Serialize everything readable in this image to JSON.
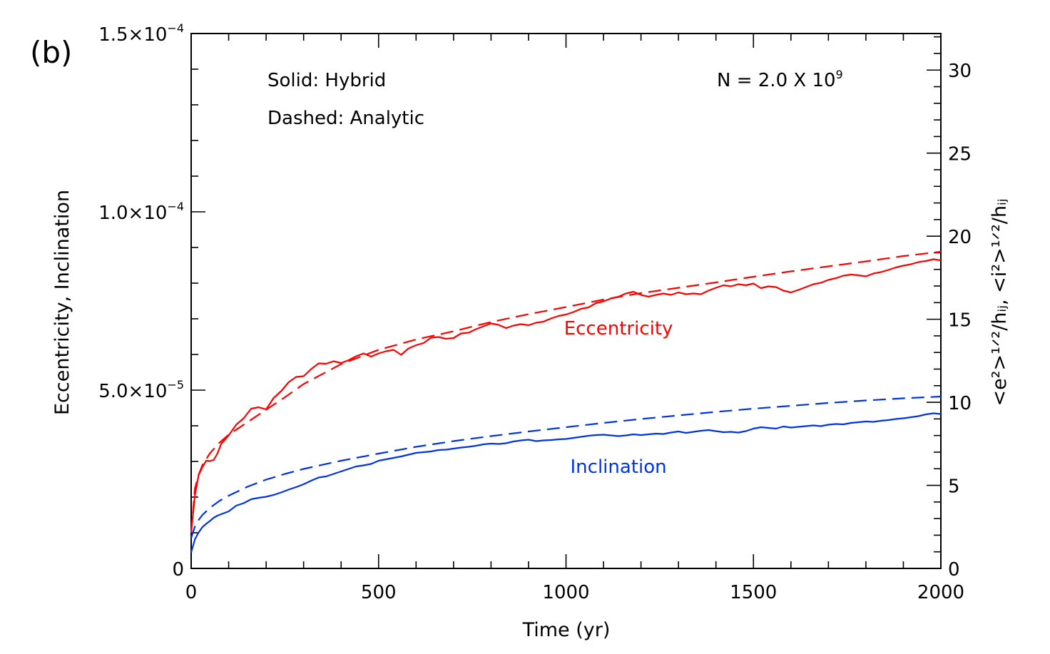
{
  "chart_data": {
    "type": "line",
    "panel_label": "(b)",
    "xlabel": "Time (yr)",
    "ylabel": "Eccentricity, Inclination",
    "ylabel_right": "<e²>¹ᐟ²/hᵢⱼ, <i²>¹ᐟ²/hᵢⱼ",
    "xlim": [
      0,
      2000
    ],
    "ylim": [
      0,
      0.00015
    ],
    "ylim_right": [
      0,
      32.2
    ],
    "grid": false,
    "x_ticks": [
      {
        "value": 0,
        "label": "0"
      },
      {
        "value": 500,
        "label": "500"
      },
      {
        "value": 1000,
        "label": "1000"
      },
      {
        "value": 1500,
        "label": "1500"
      },
      {
        "value": 2000,
        "label": "2000"
      }
    ],
    "y_ticks": [
      {
        "value": 0,
        "label": "0",
        "exp": ""
      },
      {
        "value": 5e-05,
        "label": "5.0×10",
        "exp": "−5"
      },
      {
        "value": 0.0001,
        "label": "1.0×10",
        "exp": "−4"
      },
      {
        "value": 0.00015,
        "label": "1.5×10",
        "exp": "−4"
      }
    ],
    "y_right_ticks": [
      {
        "value": 0,
        "label": "0"
      },
      {
        "value": 5,
        "label": "5"
      },
      {
        "value": 10,
        "label": "10"
      },
      {
        "value": 15,
        "label": "15"
      },
      {
        "value": 20,
        "label": "20"
      },
      {
        "value": 25,
        "label": "25"
      },
      {
        "value": 30,
        "label": "30"
      }
    ],
    "annotations": {
      "solid": "Solid: Hybrid",
      "dashed": "Dashed: Analytic",
      "n_text": "N  =  2.0  X  10",
      "n_exp": "9"
    },
    "colors": {
      "eccentricity": "#ff0000",
      "inclination": "#0033e6",
      "axis": "#000000"
    },
    "series": [
      {
        "name": "Eccentricity",
        "style": "solid",
        "color": "#ff0000",
        "x": [
          0,
          10,
          20,
          30,
          40,
          50,
          60,
          70,
          80,
          100,
          120,
          140,
          160,
          180,
          200,
          220,
          240,
          260,
          280,
          300,
          320,
          340,
          360,
          380,
          400,
          420,
          440,
          460,
          480,
          500,
          520,
          540,
          560,
          580,
          600,
          620,
          640,
          660,
          680,
          700,
          720,
          740,
          760,
          780,
          800,
          820,
          840,
          860,
          880,
          900,
          920,
          940,
          960,
          980,
          1000,
          1020,
          1040,
          1060,
          1080,
          1100,
          1120,
          1140,
          1160,
          1180,
          1200,
          1220,
          1240,
          1260,
          1280,
          1300,
          1320,
          1340,
          1360,
          1380,
          1400,
          1420,
          1440,
          1460,
          1480,
          1500,
          1520,
          1540,
          1560,
          1580,
          1600,
          1620,
          1640,
          1660,
          1680,
          1700,
          1720,
          1740,
          1760,
          1780,
          1800,
          1820,
          1840,
          1860,
          1880,
          1900,
          1920,
          1940,
          1960,
          1980,
          2000
        ],
        "y": [
          1.02e-05,
          2.05e-05,
          2.62e-05,
          2.84e-05,
          3.02e-05,
          3.01e-05,
          3.04e-05,
          3.22e-05,
          3.49e-05,
          3.73e-05,
          4.03e-05,
          4.21e-05,
          4.48e-05,
          4.52e-05,
          4.46e-05,
          4.78e-05,
          4.97e-05,
          5.22e-05,
          5.37e-05,
          5.39e-05,
          5.59e-05,
          5.75e-05,
          5.74e-05,
          5.81e-05,
          5.76e-05,
          5.84e-05,
          5.95e-05,
          6.03e-05,
          5.94e-05,
          6.03e-05,
          6.09e-05,
          6.13e-05,
          5.99e-05,
          6.17e-05,
          6.26e-05,
          6.32e-05,
          6.47e-05,
          6.49e-05,
          6.44e-05,
          6.46e-05,
          6.59e-05,
          6.61e-05,
          6.71e-05,
          6.79e-05,
          6.87e-05,
          6.83e-05,
          6.74e-05,
          6.81e-05,
          6.85e-05,
          6.82e-05,
          6.89e-05,
          6.92e-05,
          7.01e-05,
          7.08e-05,
          7.12e-05,
          7.19e-05,
          7.28e-05,
          7.32e-05,
          7.44e-05,
          7.49e-05,
          7.57e-05,
          7.62e-05,
          7.71e-05,
          7.76e-05,
          7.67e-05,
          7.62e-05,
          7.67e-05,
          7.71e-05,
          7.67e-05,
          7.74e-05,
          7.69e-05,
          7.71e-05,
          7.69e-05,
          7.79e-05,
          7.87e-05,
          7.94e-05,
          7.91e-05,
          7.97e-05,
          7.94e-05,
          7.99e-05,
          7.86e-05,
          7.91e-05,
          7.89e-05,
          7.79e-05,
          7.74e-05,
          7.81e-05,
          7.89e-05,
          7.97e-05,
          8.01e-05,
          8.09e-05,
          8.14e-05,
          8.21e-05,
          8.24e-05,
          8.22e-05,
          8.19e-05,
          8.27e-05,
          8.31e-05,
          8.37e-05,
          8.44e-05,
          8.49e-05,
          8.53e-05,
          8.59e-05,
          8.62e-05,
          8.67e-05,
          8.64e-05
        ]
      },
      {
        "name": "Eccentricity",
        "style": "dashed",
        "color": "#ff0000",
        "x": [
          0,
          10,
          20,
          30,
          50,
          75,
          100,
          150,
          200,
          250,
          300,
          400,
          500,
          600,
          700,
          800,
          900,
          1000,
          1100,
          1200,
          1300,
          1400,
          1500,
          1600,
          1700,
          1800,
          1900,
          2000
        ],
        "y": [
          1e-05,
          2.25e-05,
          2.63e-05,
          2.9e-05,
          3.23e-05,
          3.52e-05,
          3.75e-05,
          4.1e-05,
          4.45e-05,
          4.8e-05,
          5.17e-05,
          5.73e-05,
          6.13e-05,
          6.42e-05,
          6.65e-05,
          6.91e-05,
          7.13e-05,
          7.33e-05,
          7.54e-05,
          7.72e-05,
          7.87e-05,
          8.02e-05,
          8.18e-05,
          8.33e-05,
          8.47e-05,
          8.61e-05,
          8.76e-05,
          8.88e-05
        ]
      },
      {
        "name": "Inclination",
        "style": "solid",
        "color": "#0033e6",
        "x": [
          0,
          10,
          20,
          30,
          40,
          50,
          60,
          70,
          80,
          100,
          120,
          140,
          160,
          180,
          200,
          220,
          240,
          260,
          280,
          300,
          320,
          340,
          360,
          380,
          400,
          420,
          440,
          460,
          480,
          500,
          520,
          540,
          560,
          580,
          600,
          620,
          640,
          660,
          680,
          700,
          720,
          740,
          760,
          780,
          800,
          820,
          840,
          860,
          880,
          900,
          920,
          940,
          960,
          980,
          1000,
          1020,
          1040,
          1060,
          1080,
          1100,
          1120,
          1140,
          1160,
          1180,
          1200,
          1220,
          1240,
          1260,
          1280,
          1300,
          1320,
          1340,
          1360,
          1380,
          1400,
          1420,
          1440,
          1460,
          1480,
          1500,
          1520,
          1540,
          1560,
          1580,
          1600,
          1620,
          1640,
          1660,
          1680,
          1700,
          1720,
          1740,
          1760,
          1780,
          1800,
          1820,
          1840,
          1860,
          1880,
          1900,
          1920,
          1940,
          1960,
          1980,
          2000
        ],
        "y": [
          4.5e-06,
          8.2e-06,
          1.01e-05,
          1.16e-05,
          1.25e-05,
          1.33e-05,
          1.42e-05,
          1.48e-05,
          1.52e-05,
          1.6e-05,
          1.76e-05,
          1.83e-05,
          1.94e-05,
          1.98e-05,
          2.01e-05,
          2.06e-05,
          2.13e-05,
          2.21e-05,
          2.28e-05,
          2.36e-05,
          2.46e-05,
          2.55e-05,
          2.58e-05,
          2.65e-05,
          2.72e-05,
          2.79e-05,
          2.86e-05,
          2.89e-05,
          2.93e-05,
          3.02e-05,
          3.06e-05,
          3.1e-05,
          3.14e-05,
          3.19e-05,
          3.24e-05,
          3.26e-05,
          3.28e-05,
          3.32e-05,
          3.33e-05,
          3.36e-05,
          3.39e-05,
          3.41e-05,
          3.44e-05,
          3.48e-05,
          3.5e-05,
          3.49e-05,
          3.51e-05,
          3.56e-05,
          3.59e-05,
          3.61e-05,
          3.57e-05,
          3.59e-05,
          3.6e-05,
          3.62e-05,
          3.63e-05,
          3.66e-05,
          3.69e-05,
          3.72e-05,
          3.74e-05,
          3.75e-05,
          3.73e-05,
          3.71e-05,
          3.73e-05,
          3.76e-05,
          3.74e-05,
          3.76e-05,
          3.78e-05,
          3.77e-05,
          3.81e-05,
          3.84e-05,
          3.8e-05,
          3.83e-05,
          3.86e-05,
          3.88e-05,
          3.85e-05,
          3.82e-05,
          3.83e-05,
          3.81e-05,
          3.85e-05,
          3.92e-05,
          3.96e-05,
          3.94e-05,
          3.92e-05,
          3.98e-05,
          3.95e-05,
          3.97e-05,
          3.99e-05,
          4.01e-05,
          3.99e-05,
          4.03e-05,
          4.05e-05,
          4.04e-05,
          4.08e-05,
          4.1e-05,
          4.12e-05,
          4.11e-05,
          4.14e-05,
          4.16e-05,
          4.19e-05,
          4.21e-05,
          4.24e-05,
          4.27e-05,
          4.32e-05,
          4.35e-05,
          4.33e-05
        ]
      },
      {
        "name": "Inclination",
        "style": "dashed",
        "color": "#0033e6",
        "x": [
          0,
          10,
          20,
          30,
          50,
          75,
          100,
          150,
          200,
          250,
          300,
          400,
          500,
          600,
          700,
          800,
          900,
          1000,
          1100,
          1200,
          1300,
          1400,
          1500,
          1600,
          1700,
          1800,
          1900,
          2000
        ],
        "y": [
          8.5e-06,
          1.18e-05,
          1.36e-05,
          1.5e-05,
          1.7e-05,
          1.89e-05,
          2.04e-05,
          2.29e-05,
          2.49e-05,
          2.65e-05,
          2.79e-05,
          3.02e-05,
          3.22e-05,
          3.41e-05,
          3.57e-05,
          3.71e-05,
          3.84e-05,
          3.96e-05,
          4.08e-05,
          4.19e-05,
          4.29e-05,
          4.39e-05,
          4.48e-05,
          4.56e-05,
          4.64e-05,
          4.71e-05,
          4.77e-05,
          4.82e-05
        ]
      }
    ],
    "series_labels": [
      {
        "text": "Eccentricity",
        "x": 1140,
        "y": 6.565e-05,
        "color": "#ff0000"
      },
      {
        "text": "Inclination",
        "x": 1140,
        "y": 2.685e-05,
        "color": "#0033e6"
      }
    ]
  }
}
